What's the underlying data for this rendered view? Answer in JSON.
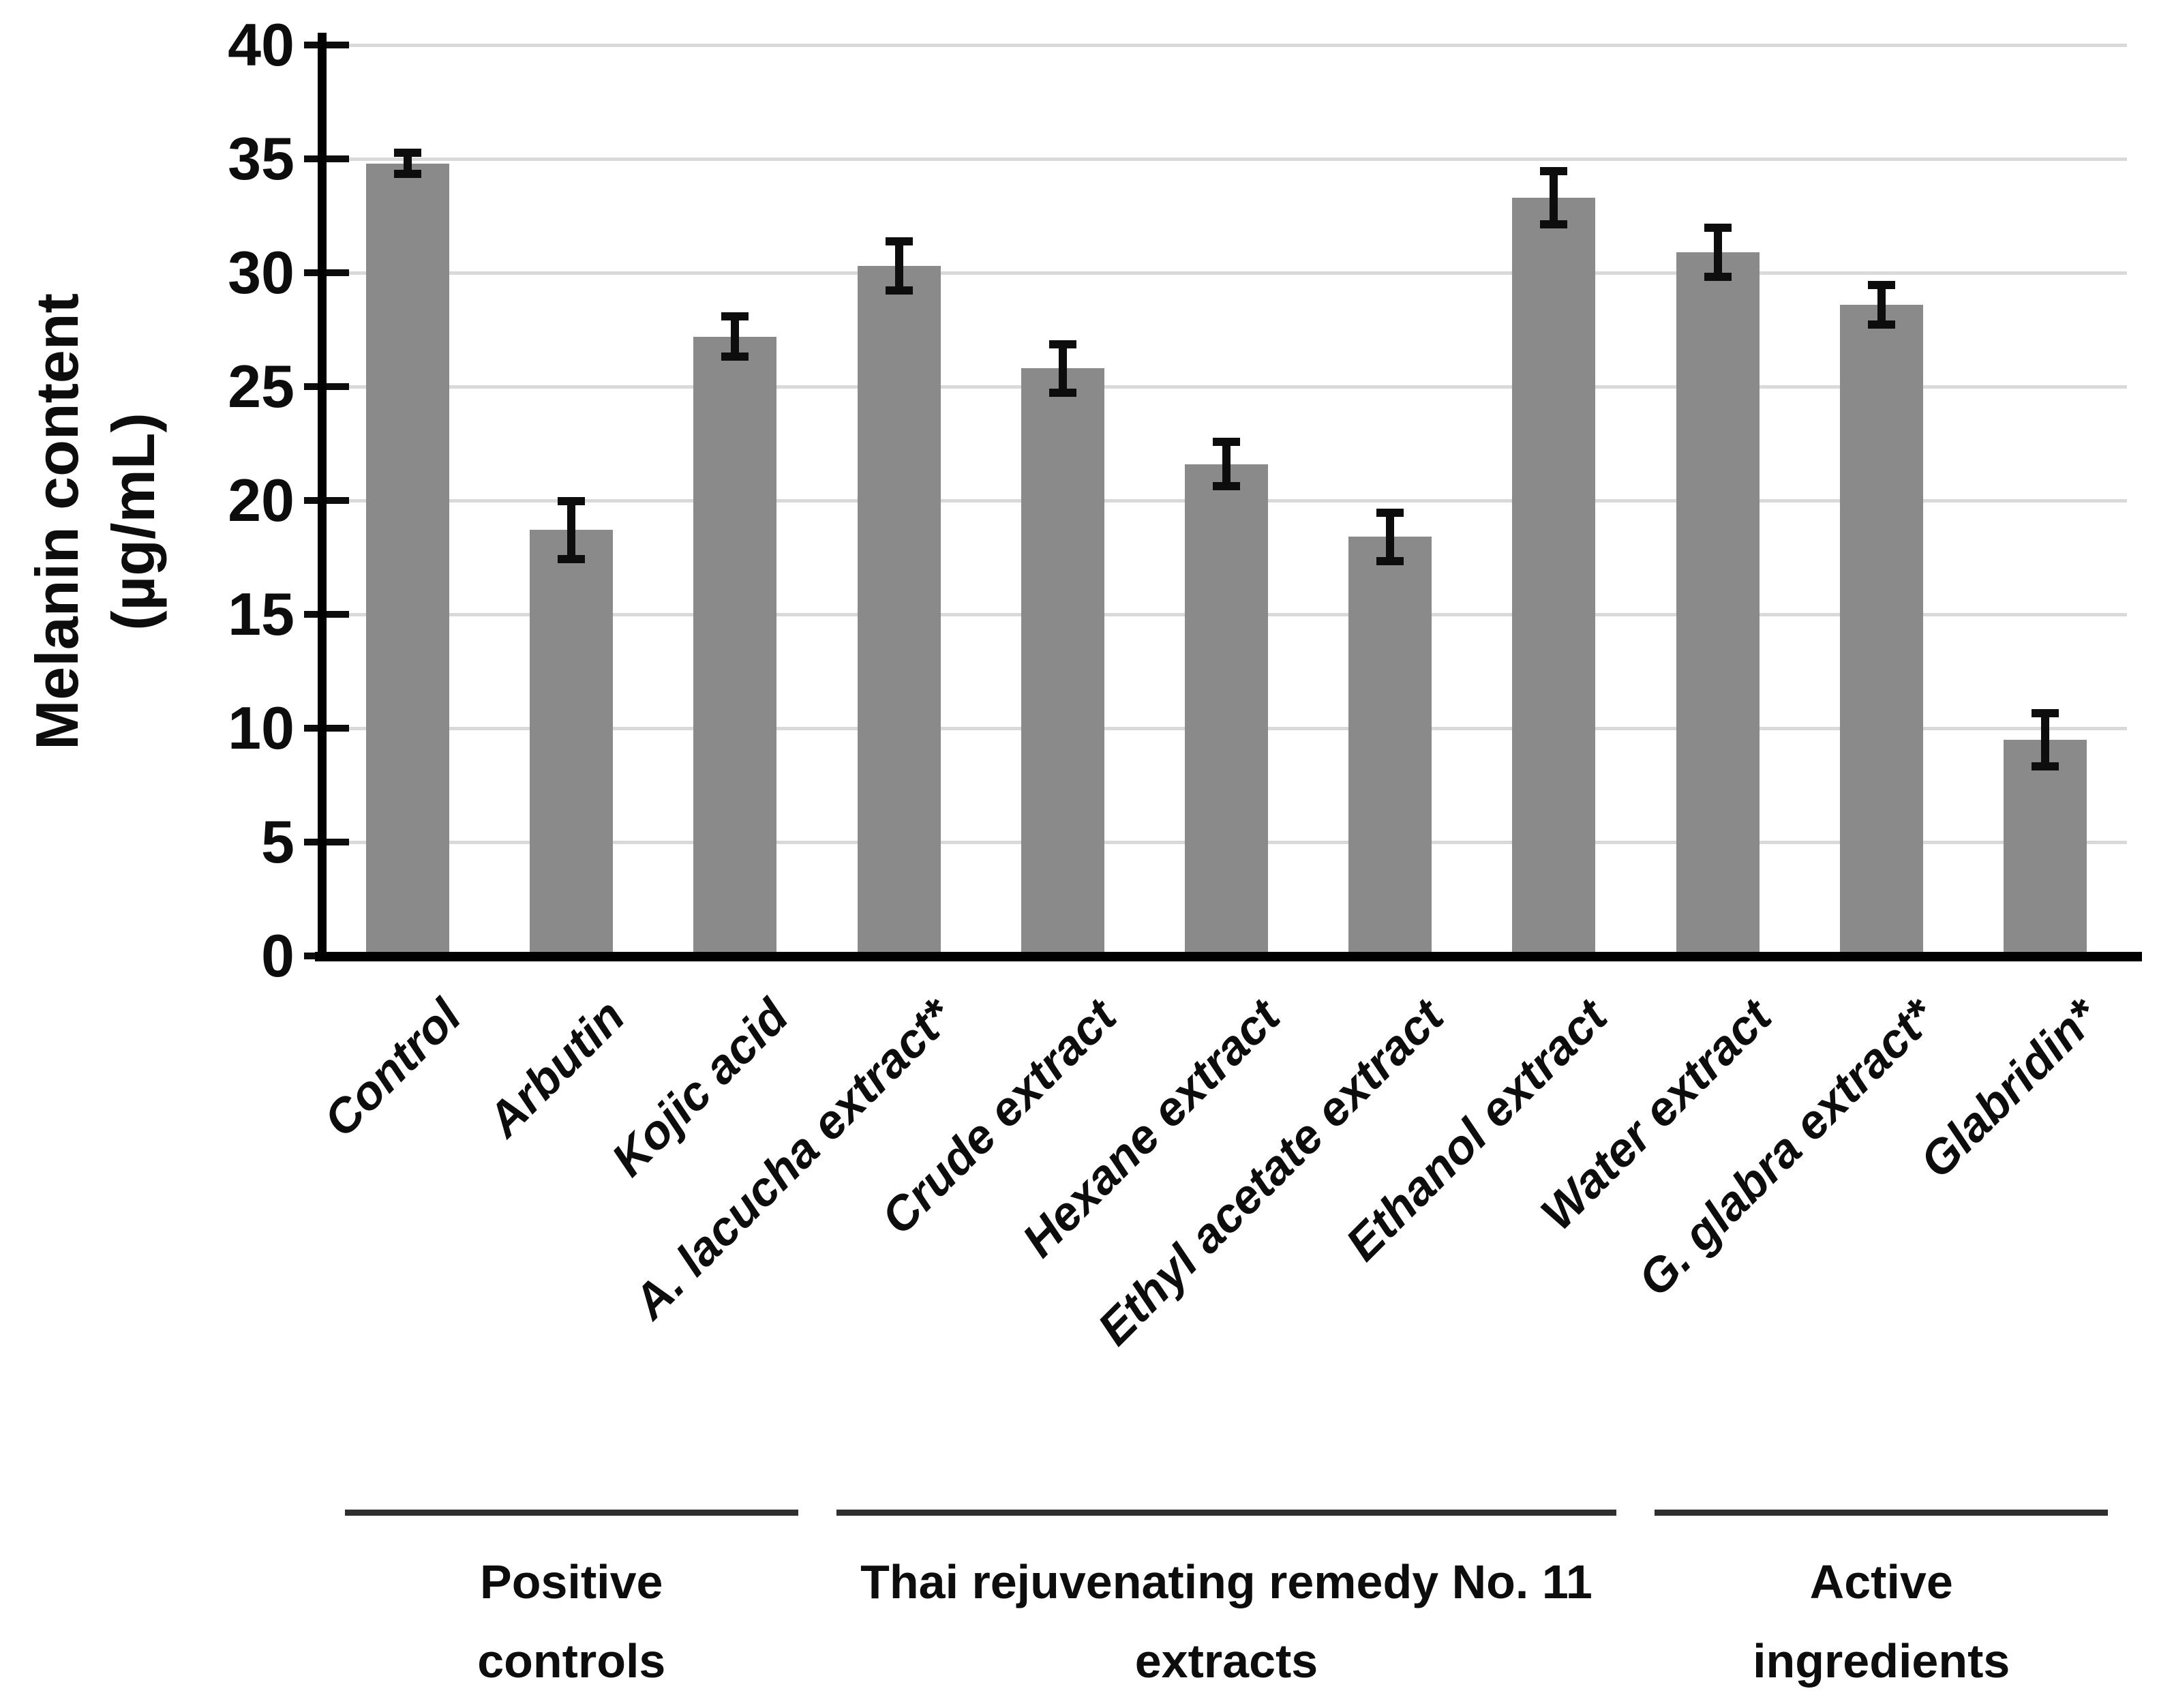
{
  "figure": {
    "background_color": "#ffffff",
    "bar_color": "#8a8a8a",
    "gridline_color": "#d9d9d9",
    "axis_color": "#000000",
    "error_bar_color": "#0d0d0d"
  },
  "y_axis": {
    "title_lines": [
      "Melanin content",
      "(µg/mL)"
    ],
    "tick_labels": [
      "40",
      "35",
      "30",
      "25",
      "20",
      "15",
      "10",
      "5",
      "0"
    ]
  },
  "chart_data": {
    "type": "bar",
    "title": "",
    "xlabel": "",
    "ylabel": "Melanin content (µg/mL)",
    "ylim": [
      0,
      40
    ],
    "ytick_step": 5,
    "grid": true,
    "legend": "none",
    "categories": [
      "Control",
      "Arbutin",
      "Kojic acid",
      "A. lacucha extract*",
      "Crude extract",
      "Hexane extract",
      "Ethyl acetate extract",
      "Ethanol extract",
      "Water extract",
      "G. glabra extract*",
      "Glabridin*"
    ],
    "values": [
      34.8,
      18.7,
      27.2,
      30.3,
      25.8,
      21.6,
      18.4,
      33.3,
      30.9,
      28.6,
      9.5
    ],
    "errors": [
      0.5,
      1.3,
      0.9,
      1.1,
      1.1,
      1.0,
      1.1,
      1.2,
      1.1,
      0.9,
      1.2
    ],
    "groups": [
      {
        "label_lines": [
          "Positive",
          "controls"
        ],
        "start_index": 0,
        "end_index": 2
      },
      {
        "label_lines": [
          "Thai rejuvenating remedy No. 11",
          "extracts"
        ],
        "start_index": 3,
        "end_index": 7
      },
      {
        "label_lines": [
          "Active",
          "ingredients"
        ],
        "start_index": 8,
        "end_index": 10
      }
    ]
  }
}
